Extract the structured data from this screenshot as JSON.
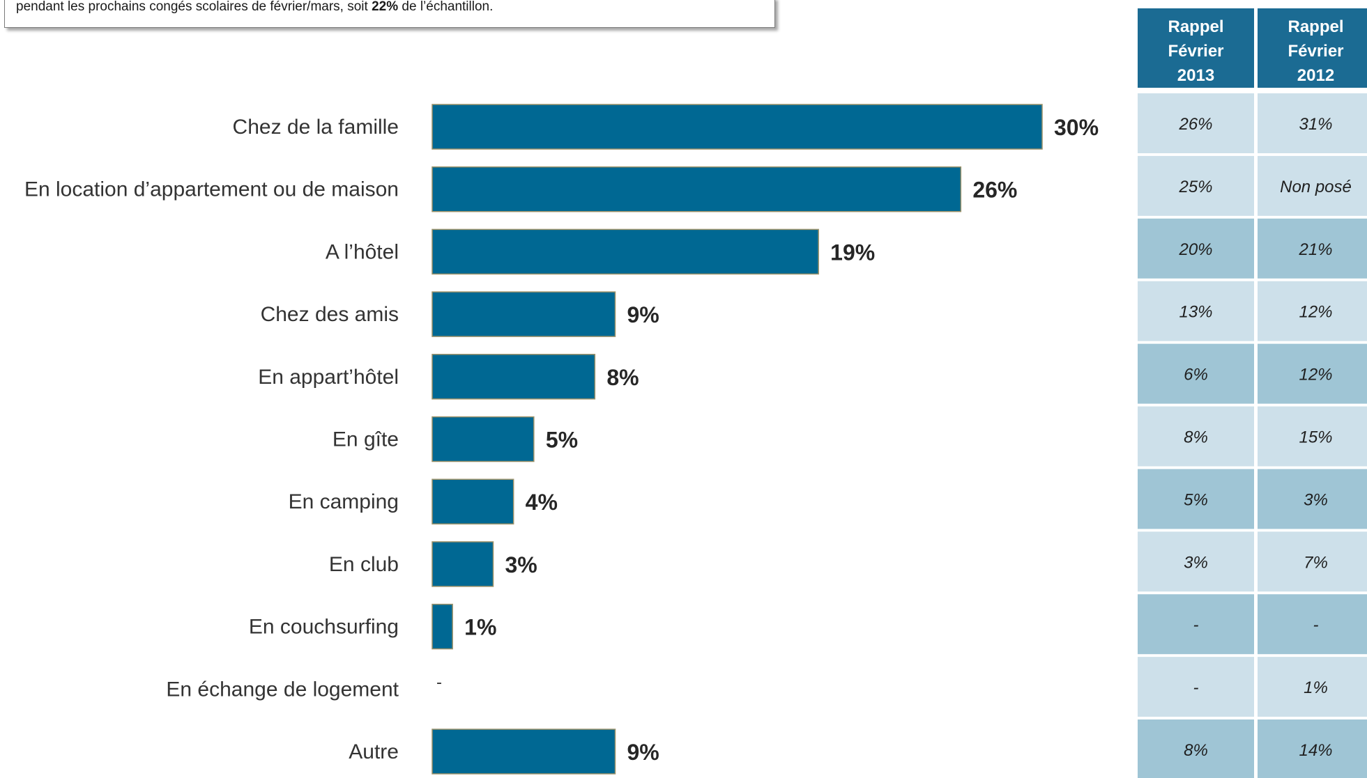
{
  "note": {
    "text_before": "pendant les prochains congés scolaires de février/mars, soit ",
    "highlight": "22%",
    "text_after": " de l’échantillon."
  },
  "colors": {
    "bar": "#006893",
    "bar_border": "#9c9168",
    "header": "#1b6b93",
    "row_light": "#cde0ea",
    "row_dark": "#9fc5d5"
  },
  "chart_data": {
    "type": "bar",
    "orientation": "horizontal",
    "categories": [
      "Chez de la famille",
      "En location d’appartement ou de maison",
      "A l’hôtel",
      "Chez des amis",
      "En appart’hôtel",
      "En gîte",
      "En camping",
      "En club",
      "En couchsurfing",
      "En échange de logement",
      "Autre"
    ],
    "values": [
      30,
      26,
      19,
      9,
      8,
      5,
      4,
      3,
      1,
      null,
      9
    ],
    "value_labels": [
      "30%",
      "26%",
      "19%",
      "9%",
      "8%",
      "5%",
      "4%",
      "3%",
      "1%",
      "-",
      "9%"
    ],
    "xlim": [
      0,
      30
    ],
    "grid": false,
    "legend": "none"
  },
  "table": {
    "headers": [
      [
        "Rappel",
        "Février",
        "2013"
      ],
      [
        "Rappel",
        "Février",
        "2012"
      ]
    ],
    "rows": [
      [
        "26%",
        "31%"
      ],
      [
        "25%",
        "Non posé"
      ],
      [
        "20%",
        "21%"
      ],
      [
        "13%",
        "12%"
      ],
      [
        "6%",
        "12%"
      ],
      [
        "8%",
        "15%"
      ],
      [
        "5%",
        "3%"
      ],
      [
        "3%",
        "7%"
      ],
      [
        "-",
        "-"
      ],
      [
        "-",
        "1%"
      ],
      [
        "8%",
        "14%"
      ]
    ]
  }
}
